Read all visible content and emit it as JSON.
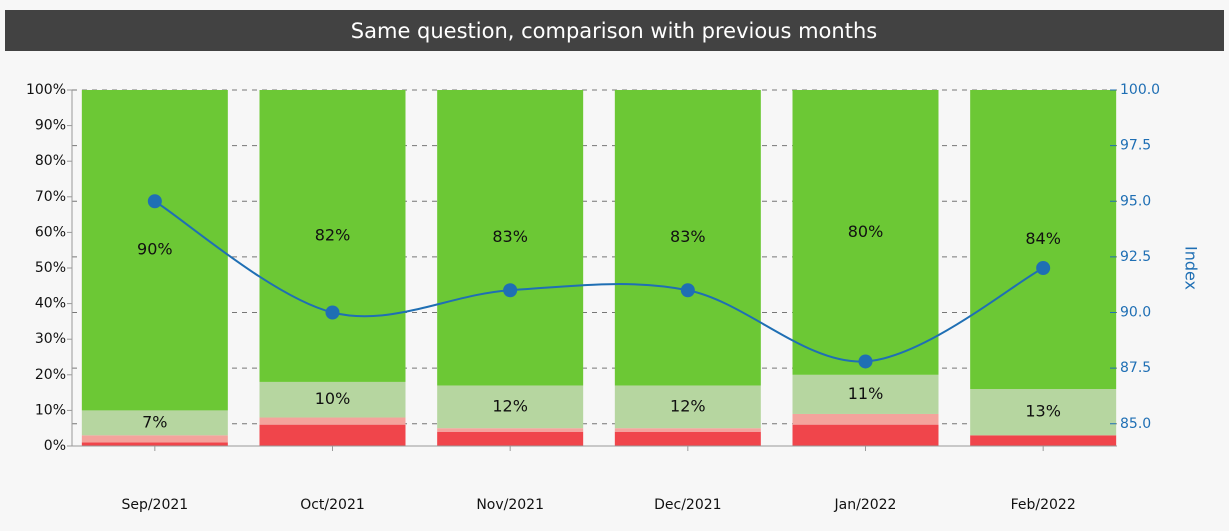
{
  "chart_data": {
    "type": "bar",
    "stacked": true,
    "title": "Same question, comparison with previous months",
    "categories": [
      "Sep/2021",
      "Oct/2021",
      "Nov/2021",
      "Dec/2021",
      "Jan/2022",
      "Feb/2022"
    ],
    "series": [
      {
        "color": "#f0454b",
        "values": [
          1,
          6,
          4,
          4,
          6,
          3
        ]
      },
      {
        "color": "#f4a39c",
        "values": [
          2,
          2,
          1,
          1,
          3,
          0
        ]
      },
      {
        "color": "#b6d6a0",
        "values": [
          7,
          10,
          12,
          12,
          11,
          13
        ],
        "value_labels": [
          "7%",
          "10%",
          "12%",
          "12%",
          "11%",
          "13%"
        ]
      },
      {
        "color": "#6cc835",
        "values": [
          90,
          82,
          83,
          83,
          80,
          84
        ],
        "value_labels": [
          "90%",
          "82%",
          "83%",
          "83%",
          "80%",
          "84%"
        ]
      },
      {
        "type": "line",
        "axis": "y2",
        "color": "#1f6fb4",
        "values": [
          95,
          90,
          91,
          91,
          87.8,
          92
        ]
      }
    ],
    "ylim": [
      0,
      100
    ],
    "yticks": [
      {
        "value": 0,
        "label": "0%"
      },
      {
        "value": 10,
        "label": "10%"
      },
      {
        "value": 20,
        "label": "20%"
      },
      {
        "value": 30,
        "label": "30%"
      },
      {
        "value": 40,
        "label": "40%"
      },
      {
        "value": 50,
        "label": "50%"
      },
      {
        "value": 60,
        "label": "60%"
      },
      {
        "value": 70,
        "label": "70%"
      },
      {
        "value": 80,
        "label": "80%"
      },
      {
        "value": 90,
        "label": "90%"
      },
      {
        "value": 100,
        "label": "100%"
      }
    ],
    "y2label": "Index",
    "y2lim": [
      84,
      100
    ],
    "y2ticks": [
      {
        "value": 85,
        "label": "85.0"
      },
      {
        "value": 87.5,
        "label": "87.5"
      },
      {
        "value": 90,
        "label": "90.0"
      },
      {
        "value": 92.5,
        "label": "92.5"
      },
      {
        "value": 95,
        "label": "95.0"
      },
      {
        "value": 97.5,
        "label": "97.5"
      },
      {
        "value": 100,
        "label": "100.0"
      }
    ],
    "grid": true
  }
}
